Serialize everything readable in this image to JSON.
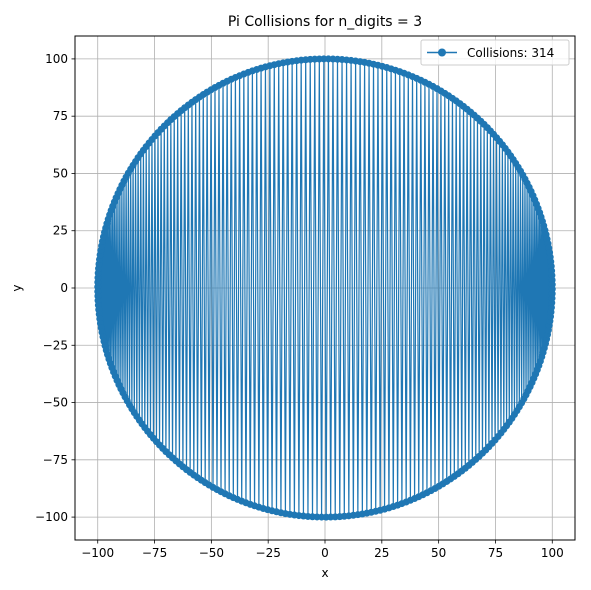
{
  "chart_data": {
    "type": "line",
    "title": "Pi Collisions for n_digits = 3",
    "xlabel": "x",
    "ylabel": "y",
    "xlim": [
      -110,
      110
    ],
    "ylim": [
      -110,
      110
    ],
    "xticks": [
      -100,
      -75,
      -50,
      -25,
      0,
      25,
      50,
      75,
      100
    ],
    "yticks": [
      -100,
      -75,
      -50,
      -25,
      0,
      25,
      50,
      75,
      100
    ],
    "xtick_labels": [
      "−100",
      "−75",
      "−50",
      "−25",
      "0",
      "25",
      "50",
      "75",
      "100"
    ],
    "ytick_labels": [
      "−100",
      "−75",
      "−50",
      "−25",
      "0",
      "25",
      "50",
      "75",
      "100"
    ],
    "grid": true,
    "legend_position": "top-right",
    "series": [
      {
        "name": "Collisions: 314",
        "color": "#1f77b4",
        "marker": "circle",
        "collisions": 314,
        "radius": 100
      }
    ]
  }
}
